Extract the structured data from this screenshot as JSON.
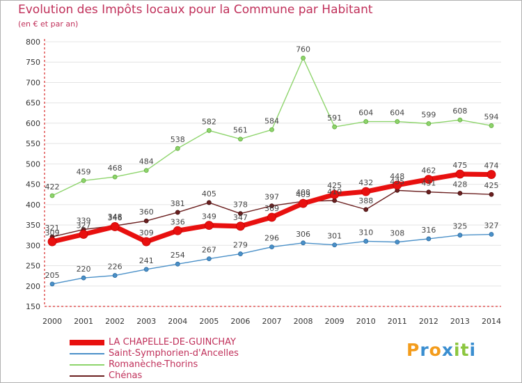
{
  "title": "Evolution des Impôts locaux pour la Commune par Habitant",
  "subtitle": "(en € et par an)",
  "logo": {
    "letters": [
      "P",
      "r",
      "o",
      "x",
      "i",
      "t",
      "i"
    ],
    "colors": [
      "#f39c1c",
      "#3a8ed0",
      "#f39c1c",
      "#3a8ed0",
      "#8cc63f",
      "#8cc63f",
      "#3a8ed0"
    ]
  },
  "chart_data": {
    "type": "line",
    "x": [
      "2000",
      "2001",
      "2002",
      "2003",
      "2004",
      "2005",
      "2006",
      "2007",
      "2008",
      "2009",
      "2010",
      "2011",
      "2012",
      "2013",
      "2014"
    ],
    "ylim": [
      150,
      800
    ],
    "yticks": [
      150,
      200,
      250,
      300,
      350,
      400,
      450,
      500,
      550,
      600,
      650,
      700,
      750,
      800
    ],
    "grid": "horizontal",
    "legend_position": "bottom-left",
    "series": [
      {
        "name": "LA CHAPELLE-DE-GUINCHAY",
        "color": "#e8100f",
        "thick": true,
        "values": [
          309,
          327,
          346,
          309,
          336,
          349,
          347,
          369,
          403,
          425,
          432,
          448,
          462,
          475,
          474
        ]
      },
      {
        "name": "Saint-Symphorien-d'Ancelles",
        "color": "#4a90c8",
        "thick": false,
        "values": [
          205,
          220,
          226,
          241,
          254,
          267,
          279,
          296,
          306,
          301,
          310,
          308,
          316,
          325,
          327
        ]
      },
      {
        "name": "Romanèche-Thorins",
        "color": "#8dd46b",
        "thick": false,
        "values": [
          422,
          459,
          468,
          484,
          538,
          582,
          561,
          584,
          760,
          591,
          604,
          604,
          599,
          608,
          594
        ]
      },
      {
        "name": "Chénas",
        "color": "#6b1f1f",
        "thick": false,
        "values": [
          321,
          339,
          348,
          360,
          381,
          405,
          378,
          397,
          408,
          410,
          388,
          435,
          431,
          428,
          425
        ]
      }
    ]
  }
}
